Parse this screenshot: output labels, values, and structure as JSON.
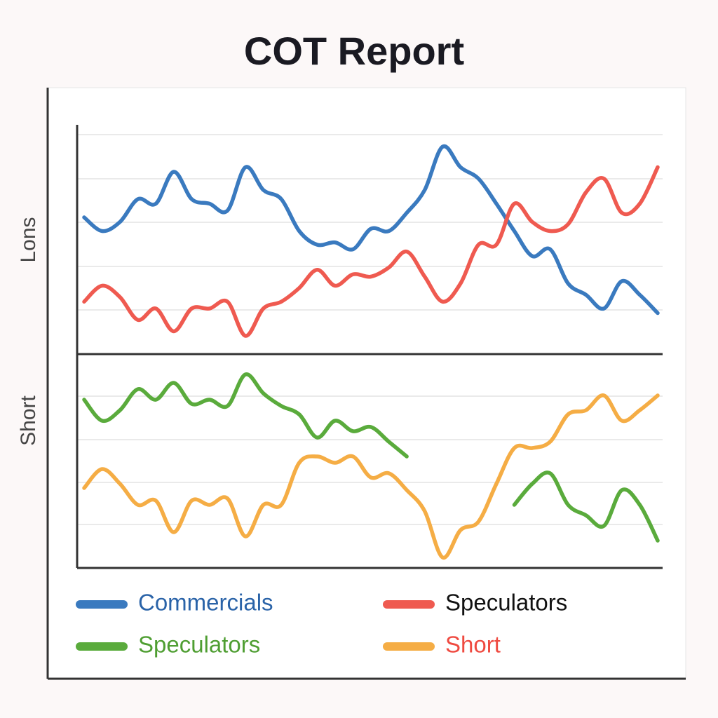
{
  "chart_data": {
    "type": "line",
    "title": "COT Report",
    "panels": [
      {
        "ylabel": "Lons",
        "ylim": [
          0,
          100
        ],
        "series": [
          {
            "name": "Commercials",
            "color": "#3a7abf",
            "label_color": "#2a63a8",
            "values": [
              60,
              54,
              58,
              68,
              66,
              80,
              68,
              66,
              63,
              82,
              72,
              68,
              54,
              48,
              49,
              46,
              55,
              54,
              62,
              72,
              91,
              82,
              77,
              66,
              54,
              43,
              46,
              31,
              26,
              20,
              32,
              26,
              18
            ]
          },
          {
            "name": "Speculators",
            "color": "#ef5a50",
            "label_color": "#111111",
            "values": [
              23,
              30,
              25,
              15,
              20,
              10,
              20,
              20,
              23,
              8,
              20,
              23,
              29,
              37,
              30,
              35,
              34,
              38,
              45,
              34,
              23,
              31,
              48,
              48,
              66,
              58,
              54,
              57,
              71,
              77,
              62,
              66,
              82
            ]
          }
        ]
      },
      {
        "ylabel": "Short",
        "ylim": [
          0,
          100
        ],
        "series": [
          {
            "name": "Speculators",
            "color": "#5aab3c",
            "label_color": "#4f9e32",
            "values": [
              80,
              70,
              75,
              85,
              80,
              88,
              78,
              80,
              77,
              92,
              83,
              77,
              73,
              62,
              70,
              65,
              67,
              60,
              53,
              null,
              null,
              null,
              null,
              null,
              30,
              40,
              45,
              30,
              25,
              20,
              37,
              30,
              13
            ]
          },
          {
            "name": "Short",
            "color": "#f5ad45",
            "label_color": "#ef4a40",
            "values": [
              38,
              47,
              40,
              30,
              32,
              17,
              32,
              30,
              33,
              15,
              30,
              30,
              50,
              53,
              50,
              53,
              43,
              45,
              37,
              27,
              5,
              18,
              22,
              40,
              57,
              57,
              60,
              73,
              75,
              82,
              70,
              75,
              82
            ]
          }
        ]
      }
    ]
  }
}
